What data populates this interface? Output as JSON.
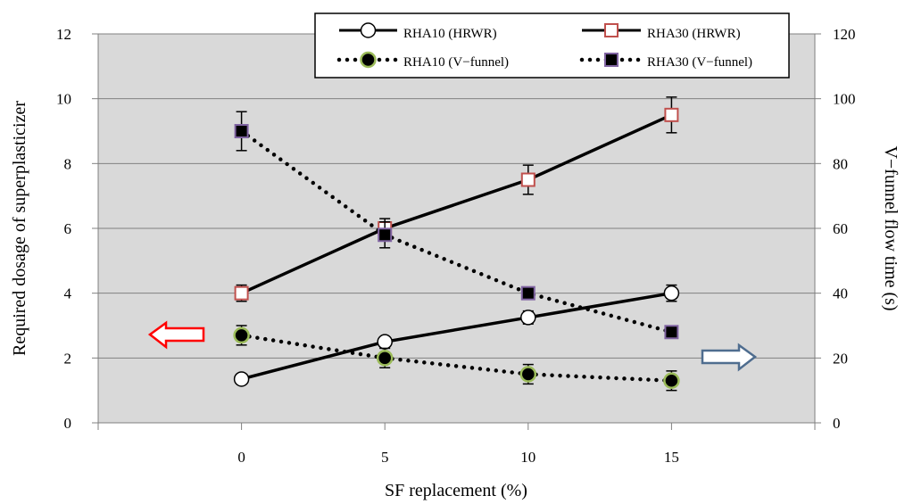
{
  "chart_data": {
    "type": "line",
    "xlabel": "SF replacement (%)",
    "ylabel": "Required dosage of superplasticizer",
    "y2label": "V−funnel flow time (s)",
    "x": [
      0,
      5,
      10,
      15
    ],
    "xlim": [
      -5,
      20
    ],
    "ylim": [
      0,
      12
    ],
    "y2lim": [
      0,
      120
    ],
    "x_ticks": [
      "0",
      "5",
      "10",
      "15"
    ],
    "y_ticks": [
      "0",
      "2",
      "4",
      "6",
      "8",
      "10",
      "12"
    ],
    "y2_ticks": [
      "0",
      "20",
      "40",
      "60",
      "80",
      "100",
      "120"
    ],
    "grid": "horizontal",
    "plot_background": "#d9d9d9",
    "legend_position": "top-center",
    "series": [
      {
        "name": "RHA10 (HRWR)",
        "axis": "left",
        "line": "solid",
        "marker": "circle",
        "marker_fill": "#ffffff",
        "marker_stroke": "#000000",
        "values": [
          1.35,
          2.5,
          3.25,
          4.0
        ],
        "error": [
          0,
          0,
          0.2,
          0.25
        ]
      },
      {
        "name": "RHA30 (HRWR)",
        "axis": "left",
        "line": "solid",
        "marker": "square",
        "marker_fill": "#ffffff",
        "marker_stroke": "#c0504d",
        "values": [
          4.0,
          6.0,
          7.5,
          9.5
        ],
        "error": [
          0.25,
          0.3,
          0.45,
          0.55
        ]
      },
      {
        "name": "RHA10 (V−funnel)",
        "axis": "right",
        "line": "dotted",
        "marker": "circle",
        "marker_fill": "#000000",
        "marker_stroke": "#9bbb59",
        "values": [
          27,
          20,
          15,
          13
        ],
        "error": [
          3,
          3,
          3,
          3
        ]
      },
      {
        "name": "RHA30 (V−funnel)",
        "axis": "right",
        "line": "dotted",
        "marker": "square",
        "marker_fill": "#000000",
        "marker_stroke": "#8064a2",
        "values": [
          90,
          58,
          40,
          28
        ],
        "error": [
          6,
          4,
          0,
          0
        ]
      }
    ],
    "annotations": [
      {
        "shape": "arrow-left",
        "color": "#ff0000",
        "meaning": "left axis"
      },
      {
        "shape": "arrow-right",
        "color": "#4f6d8f",
        "meaning": "right axis"
      }
    ]
  }
}
